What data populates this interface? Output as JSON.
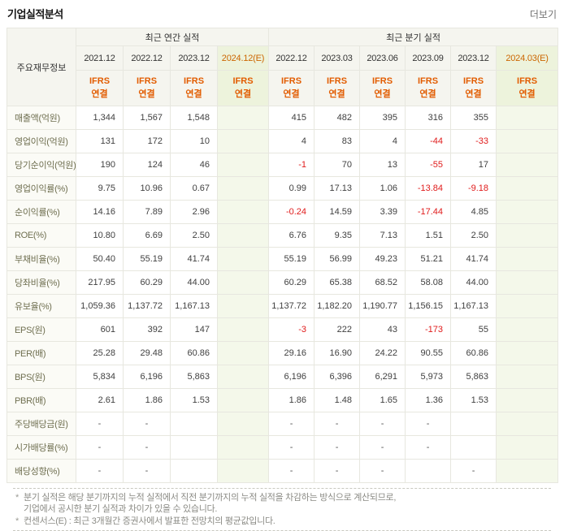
{
  "panel": {
    "title": "기업실적분석",
    "more_label": "더보기"
  },
  "table": {
    "corner_header": "주요재무정보",
    "accounting_standard": "IFRS 연결",
    "sections": [
      {
        "label": "최근 연간 실적",
        "colspan": 4
      },
      {
        "label": "최근 분기 실적",
        "colspan": 6
      }
    ],
    "columns": [
      {
        "label": "2021.12",
        "estimate": false,
        "section": "annual"
      },
      {
        "label": "2022.12",
        "estimate": false,
        "section": "annual"
      },
      {
        "label": "2023.12",
        "estimate": false,
        "section": "annual"
      },
      {
        "label": "2024.12(E)",
        "estimate": true,
        "section": "annual"
      },
      {
        "label": "2022.12",
        "estimate": false,
        "section": "quarterly"
      },
      {
        "label": "2023.03",
        "estimate": false,
        "section": "quarterly"
      },
      {
        "label": "2023.06",
        "estimate": false,
        "section": "quarterly"
      },
      {
        "label": "2023.09",
        "estimate": false,
        "section": "quarterly"
      },
      {
        "label": "2023.12",
        "estimate": false,
        "section": "quarterly"
      },
      {
        "label": "2024.03(E)",
        "estimate": true,
        "section": "quarterly"
      }
    ],
    "rows": [
      {
        "label": "매출액(억원)",
        "values": [
          "1,344",
          "1,567",
          "1,548",
          "",
          "415",
          "482",
          "395",
          "316",
          "355",
          ""
        ]
      },
      {
        "label": "영업이익(억원)",
        "values": [
          "131",
          "172",
          "10",
          "",
          "4",
          "83",
          "4",
          "-44",
          "-33",
          ""
        ]
      },
      {
        "label": "당기순이익(억원)",
        "values": [
          "190",
          "124",
          "46",
          "",
          "-1",
          "70",
          "13",
          "-55",
          "17",
          ""
        ]
      },
      {
        "label": "영업이익률(%)",
        "values": [
          "9.75",
          "10.96",
          "0.67",
          "",
          "0.99",
          "17.13",
          "1.06",
          "-13.84",
          "-9.18",
          ""
        ]
      },
      {
        "label": "순이익률(%)",
        "values": [
          "14.16",
          "7.89",
          "2.96",
          "",
          "-0.24",
          "14.59",
          "3.39",
          "-17.44",
          "4.85",
          ""
        ]
      },
      {
        "label": "ROE(%)",
        "values": [
          "10.80",
          "6.69",
          "2.50",
          "",
          "6.76",
          "9.35",
          "7.13",
          "1.51",
          "2.50",
          ""
        ]
      },
      {
        "label": "부채비율(%)",
        "values": [
          "50.40",
          "55.19",
          "41.74",
          "",
          "55.19",
          "56.99",
          "49.23",
          "51.21",
          "41.74",
          ""
        ]
      },
      {
        "label": "당좌비율(%)",
        "values": [
          "217.95",
          "60.29",
          "44.00",
          "",
          "60.29",
          "65.38",
          "68.52",
          "58.08",
          "44.00",
          ""
        ]
      },
      {
        "label": "유보율(%)",
        "values": [
          "1,059.36",
          "1,137.72",
          "1,167.13",
          "",
          "1,137.72",
          "1,182.20",
          "1,190.77",
          "1,156.15",
          "1,167.13",
          ""
        ]
      },
      {
        "label": "EPS(원)",
        "values": [
          "601",
          "392",
          "147",
          "",
          "-3",
          "222",
          "43",
          "-173",
          "55",
          ""
        ]
      },
      {
        "label": "PER(배)",
        "values": [
          "25.28",
          "29.48",
          "60.86",
          "",
          "29.16",
          "16.90",
          "24.22",
          "90.55",
          "60.86",
          ""
        ]
      },
      {
        "label": "BPS(원)",
        "values": [
          "5,834",
          "6,196",
          "5,863",
          "",
          "6,196",
          "6,396",
          "6,291",
          "5,973",
          "5,863",
          ""
        ]
      },
      {
        "label": "PBR(배)",
        "values": [
          "2.61",
          "1.86",
          "1.53",
          "",
          "1.86",
          "1.48",
          "1.65",
          "1.36",
          "1.53",
          ""
        ]
      },
      {
        "label": "주당배당금(원)",
        "values": [
          "-",
          "-",
          "",
          "",
          "-",
          "-",
          "-",
          "-",
          "",
          ""
        ]
      },
      {
        "label": "시가배당률(%)",
        "values": [
          "-",
          "-",
          "",
          "",
          "-",
          "-",
          "-",
          "-",
          "",
          ""
        ]
      },
      {
        "label": "배당성향(%)",
        "values": [
          "-",
          "-",
          "",
          "",
          "-",
          "-",
          "-",
          "",
          "-",
          ""
        ]
      }
    ]
  },
  "footnotes": {
    "bullet": "*",
    "items": [
      "분기 실적은 해당 분기까지의 누적 실적에서 직전 분기까지의 누적 실적을 차감하는 방식으로 계산되므로,\n기업에서 공시한 분기 실적과 차이가 있을 수 있습니다.",
      "컨센서스(E) : 최근 3개월간 증권사에서 발표한 전망치의 평균값입니다."
    ]
  },
  "colors": {
    "accent_orange": "#e25c00",
    "estimate_date_orange": "#cc6600",
    "negative_red": "#e01b1b",
    "header_bg": "#f5f5ef",
    "estimate_header_bg": "#edf3dc",
    "estimate_cell_bg": "#f4f8ea"
  }
}
